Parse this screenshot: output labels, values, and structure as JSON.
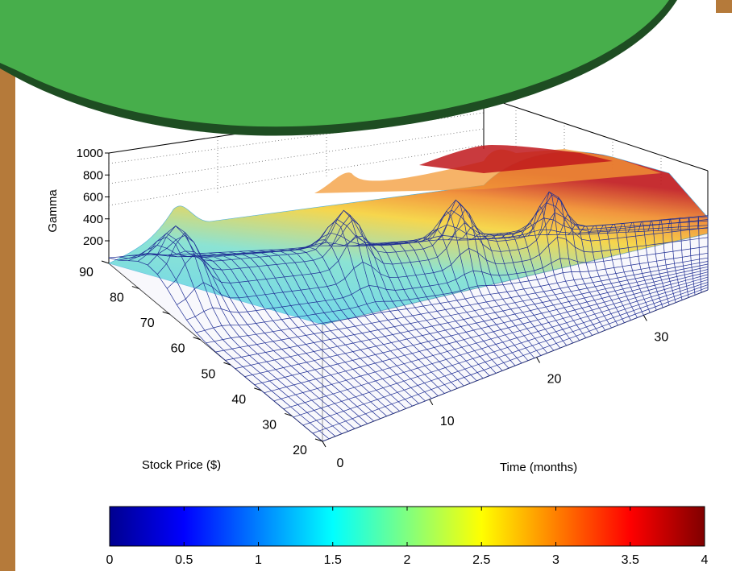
{
  "chart_data": {
    "type": "surface",
    "title": "",
    "xlabel": "Time (months)",
    "ylabel": "Stock Price ($)",
    "zlabel": "Gamma",
    "x_ticks": [
      0,
      10,
      20,
      30
    ],
    "y_ticks": [
      20,
      30,
      40,
      50,
      60,
      70,
      80,
      90
    ],
    "z_ticks": [
      200,
      400,
      600,
      800,
      1000
    ],
    "xlim": [
      0,
      36
    ],
    "ylim": [
      20,
      90
    ],
    "zlim": [
      0,
      1000
    ],
    "grid": true,
    "peaks": [
      {
        "time": 1,
        "price": 80,
        "gamma": 420
      },
      {
        "time": 6,
        "price": 62,
        "gamma": 450
      },
      {
        "time": 12,
        "price": 62,
        "gamma": 330
      },
      {
        "time": 18,
        "price": 62,
        "gamma": 340
      },
      {
        "time": 24,
        "price": 62,
        "gamma": 320
      },
      {
        "time": 12,
        "price": 90,
        "gamma": 620
      },
      {
        "time": 24,
        "price": 90,
        "gamma": 720
      }
    ],
    "colorbar": {
      "ticks": [
        "0",
        "0.5",
        "1",
        "1.5",
        "2",
        "2.5",
        "3",
        "3.5",
        "4"
      ],
      "range": [
        0,
        4
      ],
      "colormap": "jet"
    }
  },
  "colors": {
    "border_brown": "#b57a3a",
    "banner_green": "#47ae4b",
    "banner_dark": "#1e4d22",
    "mesh_blue": "#1f2e94"
  }
}
